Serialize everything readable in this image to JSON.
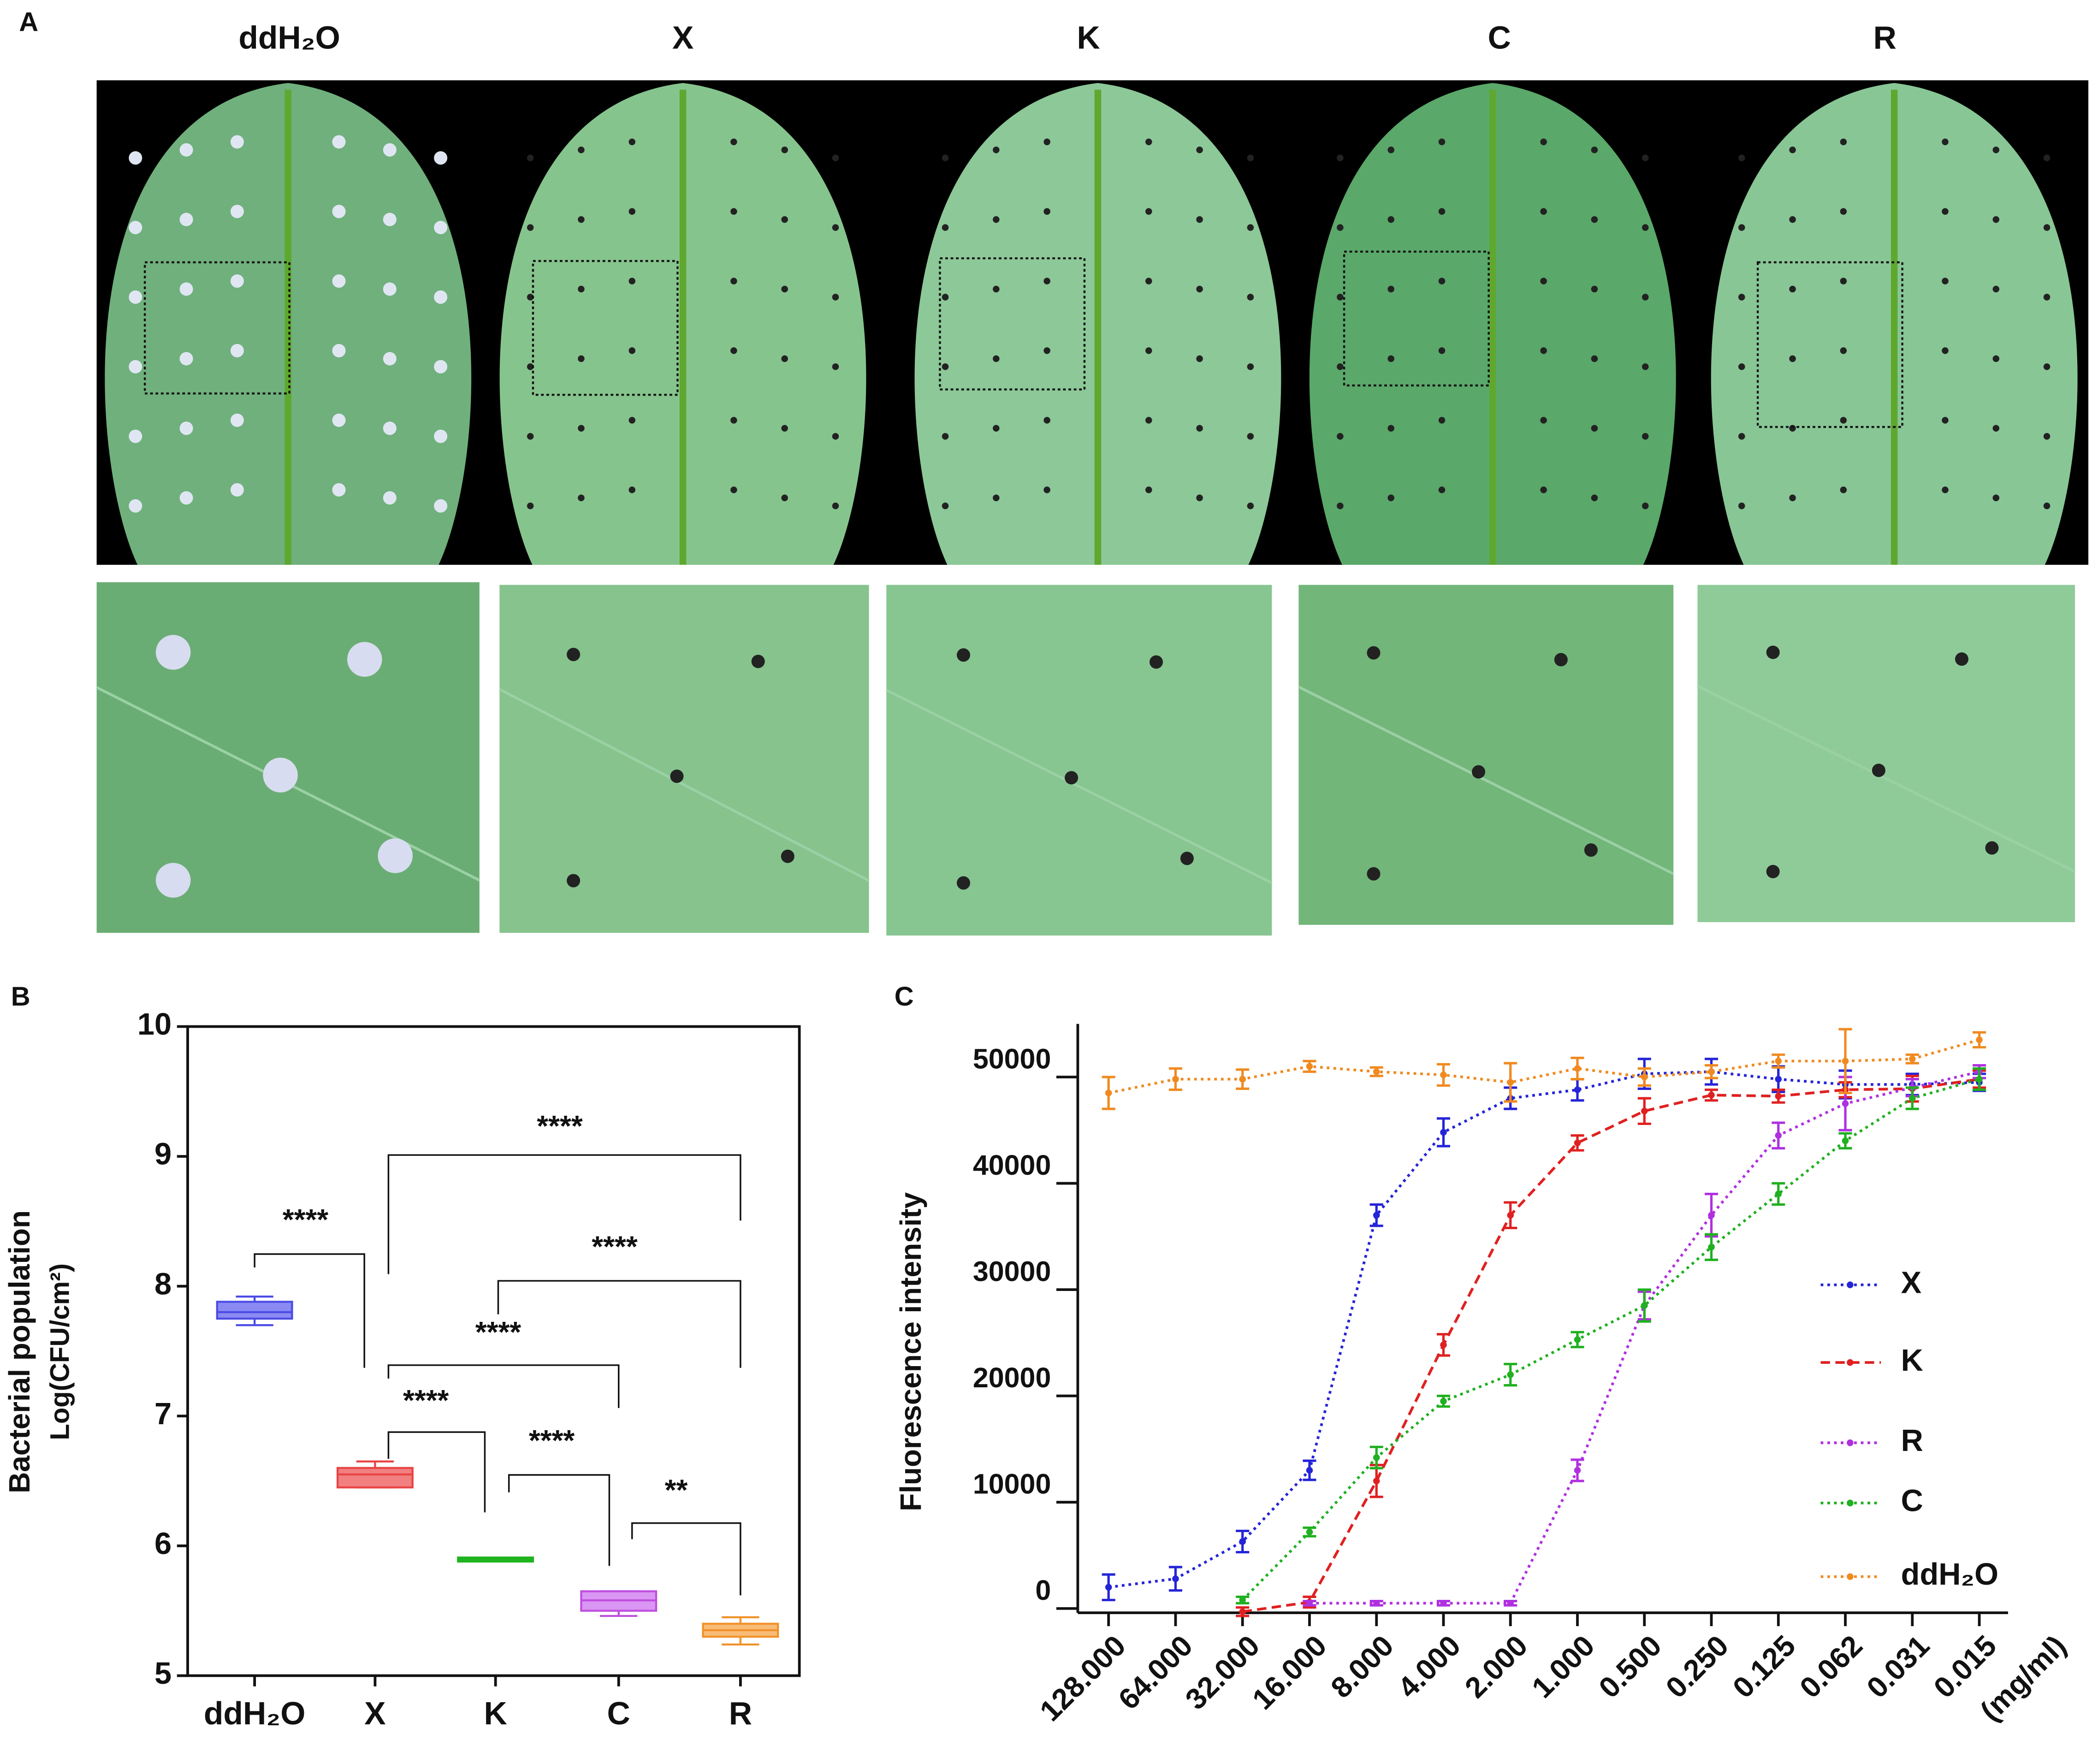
{
  "panel_labels": [
    "A",
    "B",
    "C"
  ],
  "leaf_labels": [
    "ddH₂O",
    "X",
    "K",
    "C",
    "R"
  ],
  "chart_data": [
    {
      "type": "box",
      "ylabel": [
        "Bacterial population",
        "Log(CFU/cm²)"
      ],
      "categories": [
        "ddH₂O",
        "X",
        "K",
        "C",
        "R"
      ],
      "colors": [
        "#4b4be6",
        "#e84444",
        "#1fb41f",
        "#c04ee0",
        "#f0922a"
      ],
      "fills": [
        "#8a8af2",
        "#f28080",
        "#1fb41f",
        "#d996f2",
        "#f8bc78"
      ],
      "boxes": [
        {
          "min": 7.7,
          "q1": 7.75,
          "median": 7.8,
          "q3": 7.88,
          "max": 7.92
        },
        {
          "min": 6.45,
          "q1": 6.45,
          "median": 6.55,
          "q3": 6.6,
          "max": 6.65
        },
        {
          "min": 5.89,
          "q1": 5.89,
          "median": 5.9,
          "q3": 5.91,
          "max": 5.91
        },
        {
          "min": 5.46,
          "q1": 5.5,
          "median": 5.58,
          "q3": 5.65,
          "max": 5.65
        },
        {
          "min": 5.24,
          "q1": 5.3,
          "median": 5.35,
          "q3": 5.4,
          "max": 5.45
        }
      ],
      "ylim": [
        5,
        10
      ],
      "yticks": [
        5,
        6,
        7,
        8,
        9,
        10
      ],
      "significance": [
        "****",
        "****",
        "****",
        "****",
        "****",
        "****",
        "**"
      ]
    },
    {
      "type": "line",
      "ylabel": "Fluorescence intensity",
      "xunit": "(mg/ml)",
      "categories": [
        "128.000",
        "64.000",
        "32.000",
        "16.000",
        "8.000",
        "4.000",
        "2.000",
        "1.000",
        "0.500",
        "0.250",
        "0.125",
        "0.062",
        "0.031",
        "0.015"
      ],
      "ylim": [
        -400,
        55000
      ],
      "yticks": [
        0,
        10000,
        20000,
        30000,
        40000,
        50000
      ],
      "series": [
        {
          "name": "X",
          "color": "#2424d8",
          "style": "dotted",
          "values": [
            2000,
            2800,
            6300,
            13000,
            37000,
            44800,
            48000,
            48800,
            50300,
            50500,
            49800,
            49300,
            49300,
            49500
          ],
          "errors": [
            1200,
            1100,
            1000,
            900,
            1000,
            1300,
            1000,
            1000,
            1400,
            1200,
            1200,
            1300,
            1000,
            800
          ]
        },
        {
          "name": "K",
          "color": "#e02020",
          "style": "dashed",
          "values": [
            null,
            null,
            -300,
            600,
            12000,
            24800,
            37000,
            43800,
            46800,
            48300,
            48200,
            48800,
            48900,
            49800
          ],
          "errors": [
            null,
            null,
            400,
            500,
            1500,
            1000,
            1200,
            700,
            1200,
            500,
            600,
            700,
            1200,
            800
          ]
        },
        {
          "name": "R",
          "color": "#b030e0",
          "style": "dotted",
          "values": [
            null,
            null,
            null,
            500,
            500,
            500,
            500,
            13000,
            28500,
            37000,
            44500,
            47500,
            49000,
            50500
          ],
          "errors": [
            null,
            null,
            null,
            200,
            200,
            200,
            200,
            1000,
            1300,
            2000,
            1200,
            2500,
            800,
            600
          ]
        },
        {
          "name": "C",
          "color": "#20b020",
          "style": "dotted",
          "values": [
            null,
            null,
            800,
            7200,
            14200,
            19500,
            22000,
            25300,
            28500,
            34000,
            39000,
            44000,
            48000,
            49800
          ],
          "errors": [
            null,
            null,
            300,
            400,
            1000,
            500,
            1000,
            700,
            1500,
            1200,
            1000,
            700,
            1000,
            1000
          ]
        },
        {
          "name": "ddH₂O",
          "color": "#f08a20",
          "style": "dotted",
          "values": [
            48500,
            49800,
            49800,
            51000,
            50500,
            50200,
            49500,
            50800,
            50000,
            50500,
            51500,
            51500,
            51700,
            53500
          ],
          "errors": [
            1500,
            1000,
            900,
            500,
            400,
            1000,
            1800,
            1000,
            800,
            600,
            600,
            3000,
            400,
            700
          ]
        }
      ]
    }
  ]
}
